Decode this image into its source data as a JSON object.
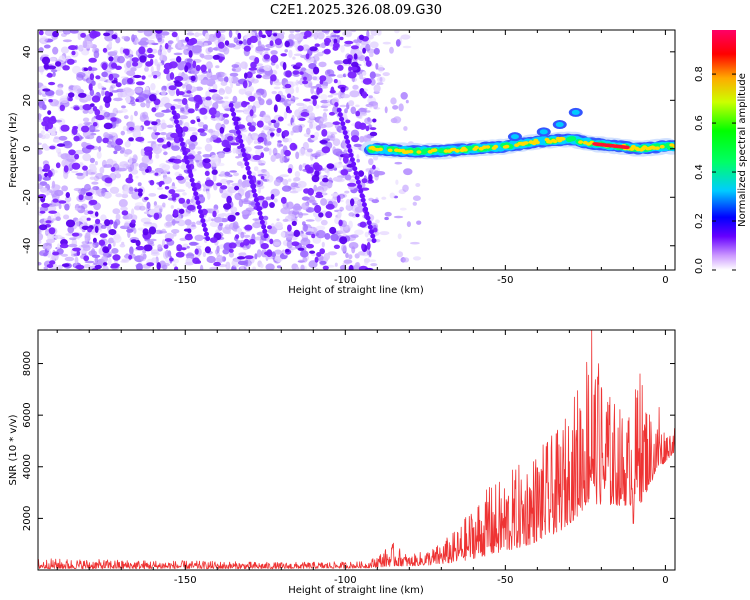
{
  "title": "C2E1.2025.326.08.09.G30",
  "chart_data": [
    {
      "type": "heatmap",
      "name": "spectrogram",
      "xlabel": "Height of straight line (km)",
      "ylabel": "Frequency (Hz)",
      "xlim": [
        -196,
        3
      ],
      "ylim": [
        -50,
        49
      ],
      "xticks": [
        -150,
        -100,
        -50,
        0
      ],
      "xtick_labels": [
        "-150",
        "-100",
        "-50",
        "0"
      ],
      "yticks": [
        -40,
        -20,
        0,
        20,
        40
      ],
      "ytick_labels": [
        "-40",
        "-20",
        "0",
        "20",
        "40"
      ],
      "noise_region": {
        "x_from": -196,
        "x_to": -77,
        "density_edge_x": -90
      },
      "signal_track": [
        {
          "x": -92,
          "y": 0
        },
        {
          "x": -80,
          "y": -1
        },
        {
          "x": -70,
          "y": -1
        },
        {
          "x": -60,
          "y": 0
        },
        {
          "x": -50,
          "y": 1
        },
        {
          "x": -40,
          "y": 3
        },
        {
          "x": -30,
          "y": 4
        },
        {
          "x": -22,
          "y": 2
        },
        {
          "x": -15,
          "y": 1
        },
        {
          "x": -8,
          "y": 0
        },
        {
          "x": 0,
          "y": 1
        },
        {
          "x": 3,
          "y": 1
        }
      ],
      "side_blobs": [
        {
          "x": -28,
          "y": 15
        },
        {
          "x": -33,
          "y": 10
        },
        {
          "x": -38,
          "y": 7
        },
        {
          "x": -47,
          "y": 5
        }
      ],
      "colorbar": {
        "label": "Normalized spectral amplitude",
        "range": [
          0,
          0.98
        ],
        "ticks": [
          0.0,
          0.2,
          0.4,
          0.6,
          0.8
        ],
        "tick_labels": [
          "0.0",
          "0.2",
          "0.4",
          "0.6",
          "0.8"
        ],
        "colors": [
          "#ffffff",
          "#cc99ff",
          "#6600ff",
          "#0000ff",
          "#00ccff",
          "#00ff66",
          "#00ff00",
          "#ccff00",
          "#ffaa00",
          "#ff0000",
          "#ff0066"
        ]
      }
    },
    {
      "type": "line",
      "name": "snr",
      "xlabel": "Height of straight line (km)",
      "ylabel": "SNR (10 * v/v)",
      "xlim": [
        -196,
        3
      ],
      "ylim": [
        0,
        9300
      ],
      "xticks": [
        -150,
        -100,
        -50,
        0
      ],
      "xtick_labels": [
        "-150",
        "-100",
        "-50",
        "0"
      ],
      "yticks": [
        2000,
        4000,
        6000,
        8000
      ],
      "ytick_labels": [
        "2000",
        "4000",
        "6000",
        "8000"
      ],
      "line_color": "#ee3333",
      "envelope": [
        {
          "x": -196,
          "base": 50,
          "amp": 400
        },
        {
          "x": -120,
          "base": 50,
          "amp": 250
        },
        {
          "x": -93,
          "base": 80,
          "amp": 250
        },
        {
          "x": -85,
          "base": 150,
          "amp": 900
        },
        {
          "x": -80,
          "base": 150,
          "amp": 400
        },
        {
          "x": -72,
          "base": 200,
          "amp": 700
        },
        {
          "x": -65,
          "base": 300,
          "amp": 1300
        },
        {
          "x": -58,
          "base": 500,
          "amp": 2400
        },
        {
          "x": -50,
          "base": 700,
          "amp": 3000
        },
        {
          "x": -42,
          "base": 1000,
          "amp": 3500
        },
        {
          "x": -33,
          "base": 1500,
          "amp": 4000
        },
        {
          "x": -28,
          "base": 2000,
          "amp": 5000
        },
        {
          "x": -24,
          "base": 2600,
          "amp": 6600
        },
        {
          "x": -18,
          "base": 2500,
          "amp": 4500
        },
        {
          "x": -12,
          "base": 2500,
          "amp": 3500
        },
        {
          "x": -8,
          "base": 2500,
          "amp": 5200
        },
        {
          "x": -4,
          "base": 3500,
          "amp": 2500
        },
        {
          "x": 0,
          "base": 4200,
          "amp": 1300
        },
        {
          "x": 3,
          "base": 4600,
          "amp": 900
        }
      ],
      "peaks": [
        {
          "x": -23,
          "y": 9300
        },
        {
          "x": -21,
          "y": 7200
        },
        {
          "x": -8,
          "y": 7600
        },
        {
          "x": -18,
          "y": 6500
        },
        {
          "x": -2,
          "y": 6300
        },
        {
          "x": -10,
          "y": 1800
        },
        {
          "x": -55,
          "y": 3200
        },
        {
          "x": -30,
          "y": 4200
        }
      ]
    }
  ]
}
